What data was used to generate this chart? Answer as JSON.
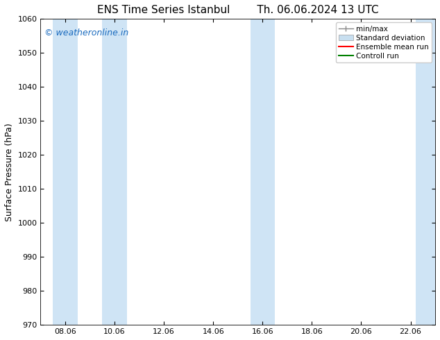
{
  "title_left": "ENS Time Series Istanbul",
  "title_right": "Th. 06.06.2024 13 UTC",
  "ylabel": "Surface Pressure (hPa)",
  "ylim": [
    970,
    1060
  ],
  "yticks": [
    970,
    980,
    990,
    1000,
    1010,
    1020,
    1030,
    1040,
    1050,
    1060
  ],
  "xlabel_ticks": [
    "08.06",
    "10.06",
    "12.06",
    "14.06",
    "16.06",
    "18.06",
    "20.06",
    "22.06"
  ],
  "x_tick_positions": [
    1,
    3,
    5,
    7,
    9,
    11,
    13,
    15
  ],
  "xlim": [
    0,
    16
  ],
  "shaded_regions": [
    {
      "x_start": 0.5,
      "x_end": 1.5
    },
    {
      "x_start": 2.5,
      "x_end": 3.5
    },
    {
      "x_start": 8.5,
      "x_end": 9.5
    },
    {
      "x_start": 15.2,
      "x_end": 16.0
    }
  ],
  "shaded_color": "#cfe4f5",
  "background_color": "#ffffff",
  "plot_bg_color": "#ffffff",
  "watermark_text": "© weatheronline.in",
  "watermark_color": "#1a6bbf",
  "legend_items": [
    {
      "label": "min/max",
      "color": "#888888",
      "style": "errorbar"
    },
    {
      "label": "Standard deviation",
      "color": "#c8dff0",
      "style": "rect"
    },
    {
      "label": "Ensemble mean run",
      "color": "#ff0000",
      "style": "line"
    },
    {
      "label": "Controll run",
      "color": "#008000",
      "style": "line"
    }
  ],
  "border_color": "#000000",
  "tick_color": "#000000",
  "title_fontsize": 11,
  "label_fontsize": 9,
  "tick_fontsize": 8,
  "watermark_fontsize": 9,
  "legend_fontsize": 7.5
}
